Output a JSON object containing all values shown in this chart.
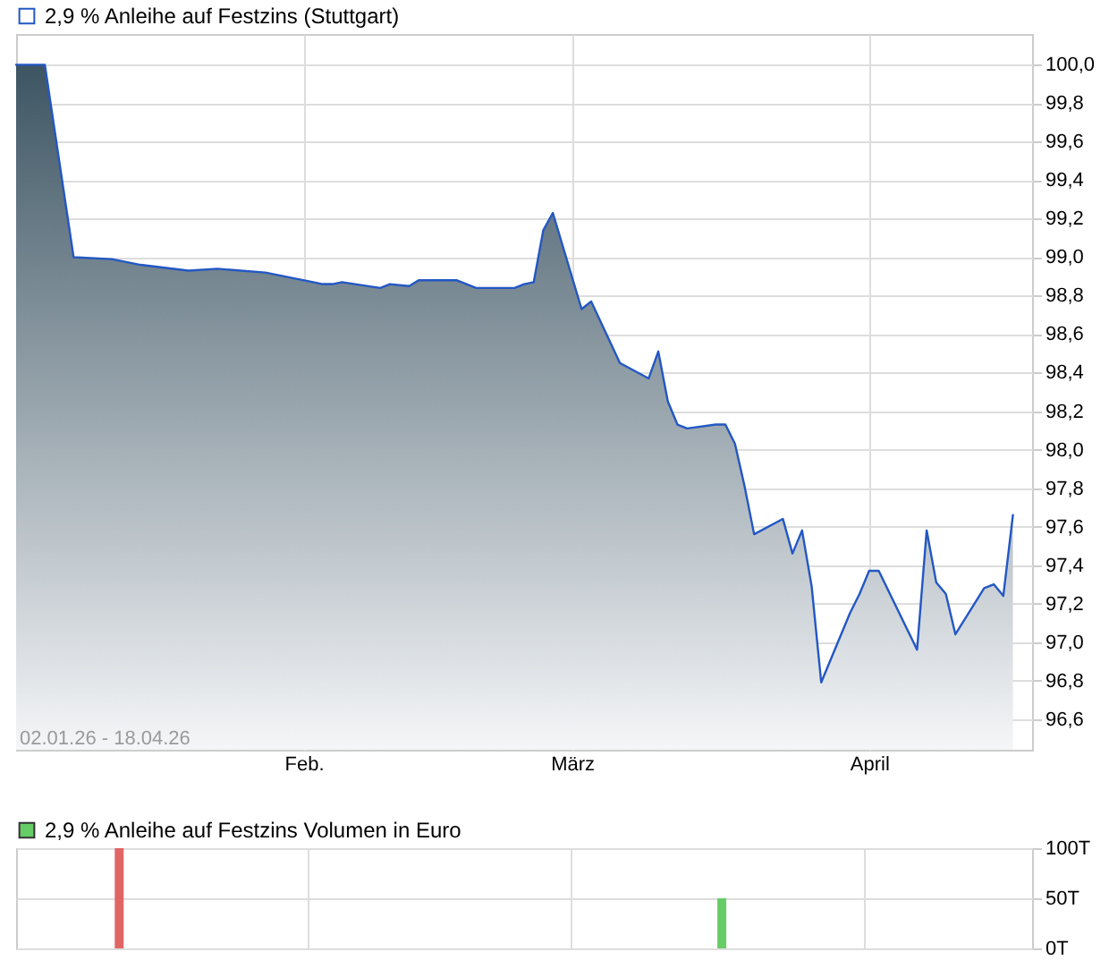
{
  "chart_data": [
    {
      "type": "area",
      "x": [
        "--01-02",
        "--01-05",
        "--01-08",
        "--01-12",
        "--01-15",
        "--01-20",
        "--01-23",
        "--01-28",
        "--02-02",
        "--02-03",
        "--02-04",
        "--02-05",
        "--02-09",
        "--02-10",
        "--02-12",
        "--02-13",
        "--02-17",
        "--02-19",
        "--02-23",
        "--02-24",
        "--02-25",
        "--02-26",
        "--02-27",
        "--03-02",
        "--03-03",
        "--03-06",
        "--03-09",
        "--03-10",
        "--03-11",
        "--03-12",
        "--03-13",
        "--03-16",
        "--03-17",
        "--03-18",
        "--03-19",
        "--03-20",
        "--03-23",
        "--03-24",
        "--03-25",
        "--03-26",
        "--03-27",
        "--03-30",
        "--03-31",
        "--04-01",
        "--04-02",
        "--04-06",
        "--04-07",
        "--04-08",
        "--04-09",
        "--04-10",
        "--04-13",
        "--04-14",
        "--04-15",
        "--04-16"
      ],
      "series": [
        {
          "name": "2,9 % Anleihe auf Festzins (Stuttgart)",
          "color": "#2357c4",
          "values": [
            100.0,
            100.0,
            99.0,
            98.99,
            98.96,
            98.93,
            98.94,
            98.92,
            98.87,
            98.86,
            98.86,
            98.87,
            98.84,
            98.86,
            98.85,
            98.88,
            98.88,
            98.84,
            98.84,
            98.86,
            98.87,
            99.14,
            99.23,
            98.73,
            98.77,
            98.45,
            98.37,
            98.51,
            98.25,
            98.13,
            98.11,
            98.13,
            98.13,
            98.03,
            97.81,
            97.56,
            97.64,
            97.46,
            97.58,
            97.29,
            96.79,
            97.15,
            97.25,
            97.37,
            97.37,
            96.96,
            97.58,
            97.31,
            97.25,
            97.04,
            97.28,
            97.3,
            97.24,
            97.66
          ]
        }
      ],
      "xlim": [
        "--01-02",
        "--04-18"
      ],
      "xticks": [
        {
          "value": "--02-01",
          "label": "Feb."
        },
        {
          "value": "--03-01",
          "label": "März"
        },
        {
          "value": "--04-01",
          "label": "April"
        }
      ],
      "ylim": [
        96.44,
        100.16
      ],
      "yticks": [
        {
          "value": 96.6,
          "label": "96,6"
        },
        {
          "value": 96.8,
          "label": "96,8"
        },
        {
          "value": 97.0,
          "label": "97,0"
        },
        {
          "value": 97.2,
          "label": "97,2"
        },
        {
          "value": 97.4,
          "label": "97,4"
        },
        {
          "value": 97.6,
          "label": "97,6"
        },
        {
          "value": 97.8,
          "label": "97,8"
        },
        {
          "value": 98.0,
          "label": "98,0"
        },
        {
          "value": 98.2,
          "label": "98,2"
        },
        {
          "value": 98.4,
          "label": "98,4"
        },
        {
          "value": 98.6,
          "label": "98,6"
        },
        {
          "value": 98.8,
          "label": "98,8"
        },
        {
          "value": 99.0,
          "label": "99,0"
        },
        {
          "value": 99.2,
          "label": "99,2"
        },
        {
          "value": 99.4,
          "label": "99,4"
        },
        {
          "value": 99.6,
          "label": "99,6"
        },
        {
          "value": 99.8,
          "label": "99,8"
        },
        {
          "value": 100.0,
          "label": "100,0"
        }
      ],
      "grid": true,
      "legend": "top left",
      "annotations": [
        "02.01.26 - 18.04.26"
      ]
    },
    {
      "type": "bar",
      "x": [
        "--01-12",
        "--03-17"
      ],
      "series": [
        {
          "name": "2,9 % Anleihe auf Festzins Volumen in Euro",
          "color": "#66cc66",
          "colors": [
            "#e06666",
            "#66cc66"
          ],
          "values": [
            100,
            50
          ]
        }
      ],
      "xlim": [
        "--01-02",
        "--04-18"
      ],
      "xticks": [
        {
          "value": "--02-01",
          "label": null
        },
        {
          "value": "--03-01",
          "label": null
        },
        {
          "value": "--04-01",
          "label": null
        }
      ],
      "ylim": [
        0,
        100
      ],
      "yticks": [
        {
          "value": 0,
          "label": "0T"
        },
        {
          "value": 50,
          "label": "50T"
        },
        {
          "value": 100,
          "label": "100T"
        }
      ],
      "grid": true,
      "legend": "top left",
      "tick_labels": "y"
    }
  ]
}
